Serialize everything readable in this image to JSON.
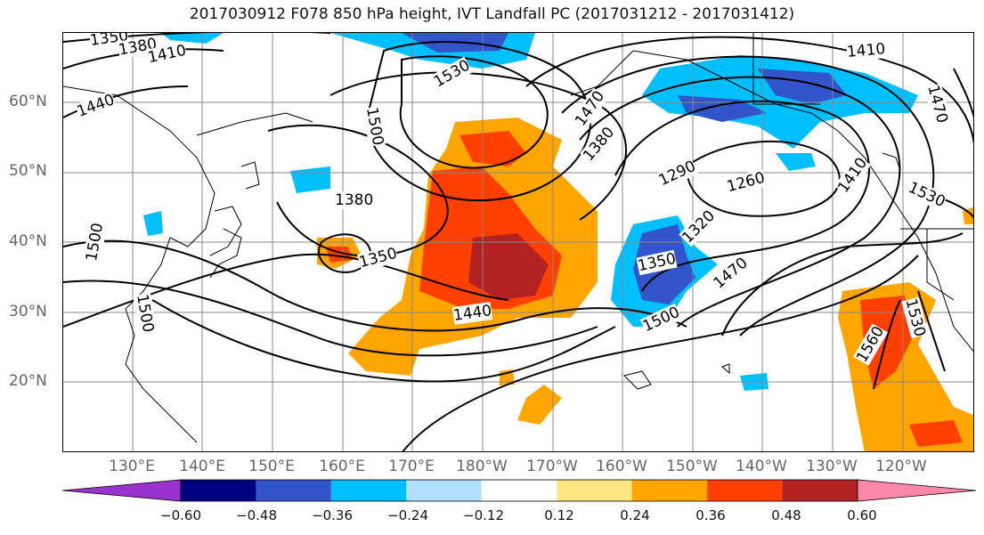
{
  "title": "2017030912 F078 850 hPa height, IVT Landfall PC (2017031212 - 2017031412)",
  "lat_labels": [
    "60°N",
    "50°N",
    "40°N",
    "30°N",
    "20°N"
  ],
  "lon_labels": [
    "130°E",
    "140°E",
    "150°E",
    "160°E",
    "170°E",
    "180°W",
    "170°W",
    "160°W",
    "150°W",
    "140°W",
    "130°W",
    "120°W"
  ],
  "contour_labels": [
    "1350",
    "1380",
    "1410",
    "1440",
    "1530",
    "1500",
    "1470",
    "1380",
    "1290",
    "1260",
    "1410",
    "1530",
    "1380",
    "1350",
    "1320",
    "1350",
    "1470",
    "1440",
    "1500",
    "1560",
    "1530",
    "1500",
    "1500",
    "1410",
    "1470"
  ],
  "colorbar": {
    "ticks": [
      "−0.60",
      "−0.48",
      "−0.36",
      "−0.24",
      "−0.12",
      "0.12",
      "0.24",
      "0.36",
      "0.48",
      "0.60"
    ],
    "colors": [
      "#9933cc",
      "#000080",
      "#3355cc",
      "#00bfff",
      "#b0e0ff",
      "#ffffff",
      "#ffe680",
      "#ffa500",
      "#ff4000",
      "#b22222",
      "#ff88aa"
    ]
  }
}
